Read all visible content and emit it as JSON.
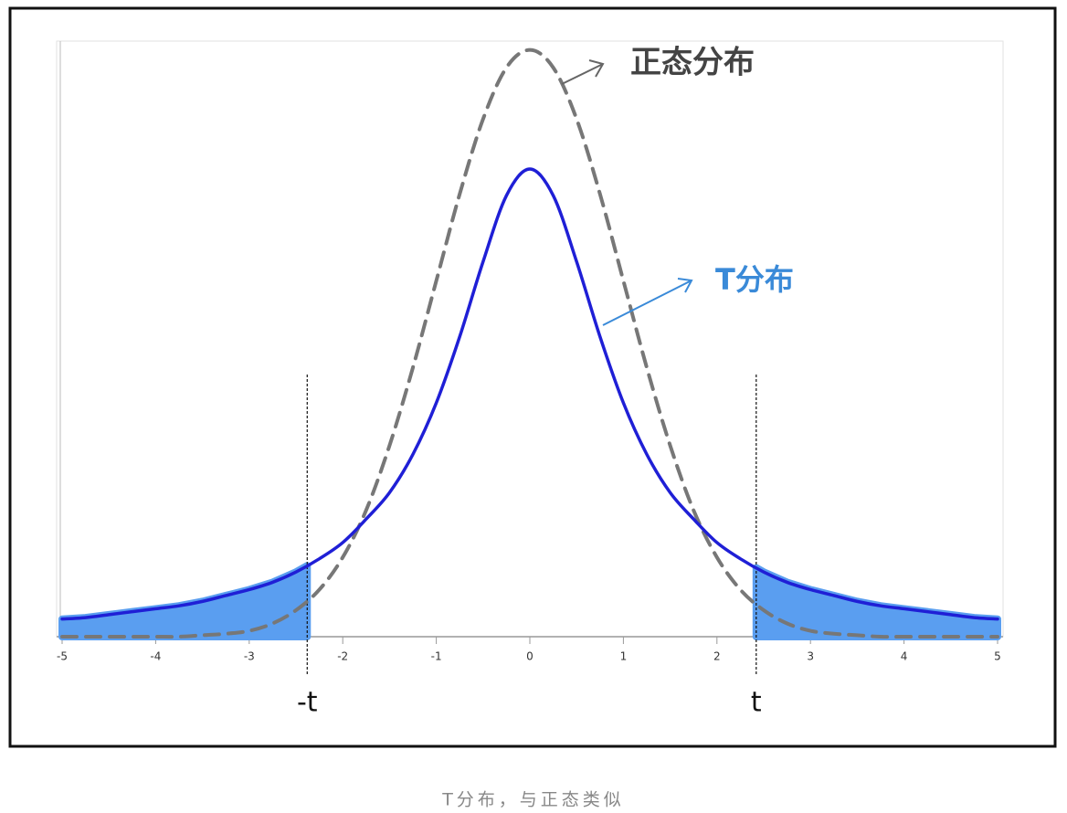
{
  "chart_data": {
    "type": "line",
    "x": [
      -5,
      -4.75,
      -4.5,
      -4.25,
      -4,
      -3.75,
      -3.5,
      -3.25,
      -3,
      -2.75,
      -2.5,
      -2.25,
      -2,
      -1.75,
      -1.5,
      -1.25,
      -1,
      -0.75,
      -0.5,
      -0.25,
      0,
      0.25,
      0.5,
      0.75,
      1,
      1.25,
      1.5,
      1.75,
      2,
      2.25,
      2.5,
      2.75,
      3,
      3.25,
      3.5,
      3.75,
      4,
      4.25,
      4.5,
      4.75,
      5
    ],
    "series": [
      {
        "name": "T分布",
        "color": "#1f1fd6",
        "dashed": false,
        "values": [
          0.012,
          0.013,
          0.015,
          0.017,
          0.019,
          0.021,
          0.024,
          0.028,
          0.032,
          0.037,
          0.044,
          0.053,
          0.064,
          0.08,
          0.098,
          0.124,
          0.159,
          0.204,
          0.255,
          0.3,
          0.318,
          0.3,
          0.255,
          0.204,
          0.159,
          0.124,
          0.098,
          0.08,
          0.064,
          0.053,
          0.044,
          0.037,
          0.032,
          0.028,
          0.024,
          0.021,
          0.019,
          0.017,
          0.015,
          0.013,
          0.012
        ]
      },
      {
        "name": "正态分布",
        "color": "#777777",
        "dashed": true,
        "values": [
          0,
          0,
          0,
          0,
          0,
          0,
          0.001,
          0.002,
          0.004,
          0.009,
          0.018,
          0.032,
          0.054,
          0.086,
          0.13,
          0.183,
          0.242,
          0.301,
          0.352,
          0.387,
          0.399,
          0.387,
          0.352,
          0.301,
          0.242,
          0.183,
          0.13,
          0.086,
          0.054,
          0.032,
          0.018,
          0.009,
          0.004,
          0.002,
          0.001,
          0,
          0,
          0,
          0,
          0,
          0
        ]
      }
    ],
    "xlim": [
      -5,
      5
    ],
    "xticks": [
      -5,
      -4,
      -3,
      -2,
      -1,
      0,
      1,
      2,
      3,
      4,
      5
    ],
    "ylim": [
      0,
      0.405
    ],
    "shade_x": [
      -2.38,
      2.42
    ],
    "shade_labels": [
      "-t",
      "t"
    ],
    "shade_color": "#5a9ef0"
  },
  "caption": "T分布，与正态类似"
}
